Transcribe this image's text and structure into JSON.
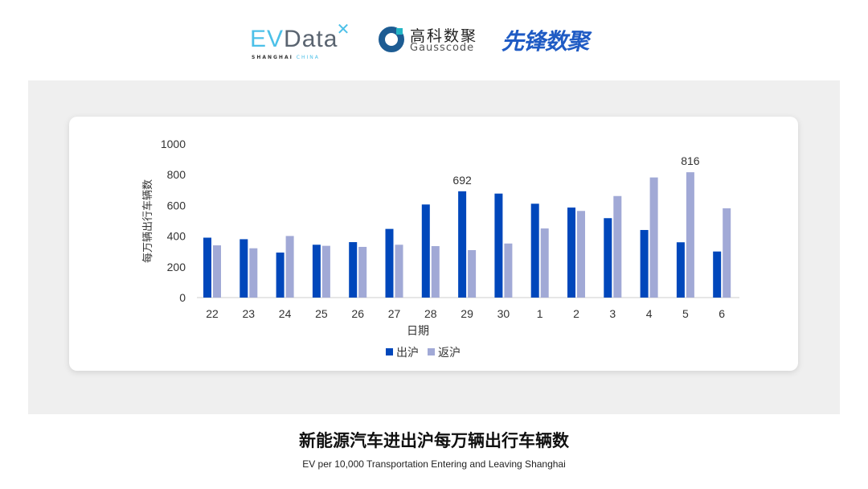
{
  "logos": {
    "evdata": {
      "ev": "EV",
      "rest": "Data",
      "sub": "SHANGHAI",
      "sub2": "CHINA"
    },
    "gausscode": {
      "cn": "高科数聚",
      "en": "Gausscode"
    },
    "xianfeng": {
      "cn": "先锋数聚"
    }
  },
  "title": "新能源汽车进出沪每万辆出行车辆数",
  "subtitle": "EV per 10,000 Transportation Entering and Leaving Shanghai",
  "chart_data": {
    "type": "bar",
    "xlabel": "日期",
    "ylabel": "每万辆出行车辆数",
    "ylim": [
      0,
      1000
    ],
    "yticks": [
      0,
      200,
      400,
      600,
      800,
      1000
    ],
    "grid": false,
    "legend": "bottom",
    "categories": [
      "22",
      "23",
      "24",
      "25",
      "26",
      "27",
      "28",
      "29",
      "30",
      "1",
      "2",
      "3",
      "4",
      "5",
      "6"
    ],
    "series": [
      {
        "name": "出沪",
        "color": "#0047bb",
        "values": [
          390,
          380,
          293,
          344,
          361,
          447,
          606,
          692,
          677,
          611,
          586,
          517,
          440,
          360,
          300
        ]
      },
      {
        "name": "返沪",
        "color": "#a1a9d6",
        "values": [
          340,
          321,
          401,
          337,
          330,
          344,
          335,
          309,
          352,
          450,
          564,
          661,
          782,
          816,
          581
        ]
      }
    ],
    "data_labels": [
      {
        "series": 0,
        "category": "29",
        "text": "692"
      },
      {
        "series": 1,
        "category": "5",
        "text": "816"
      }
    ]
  }
}
